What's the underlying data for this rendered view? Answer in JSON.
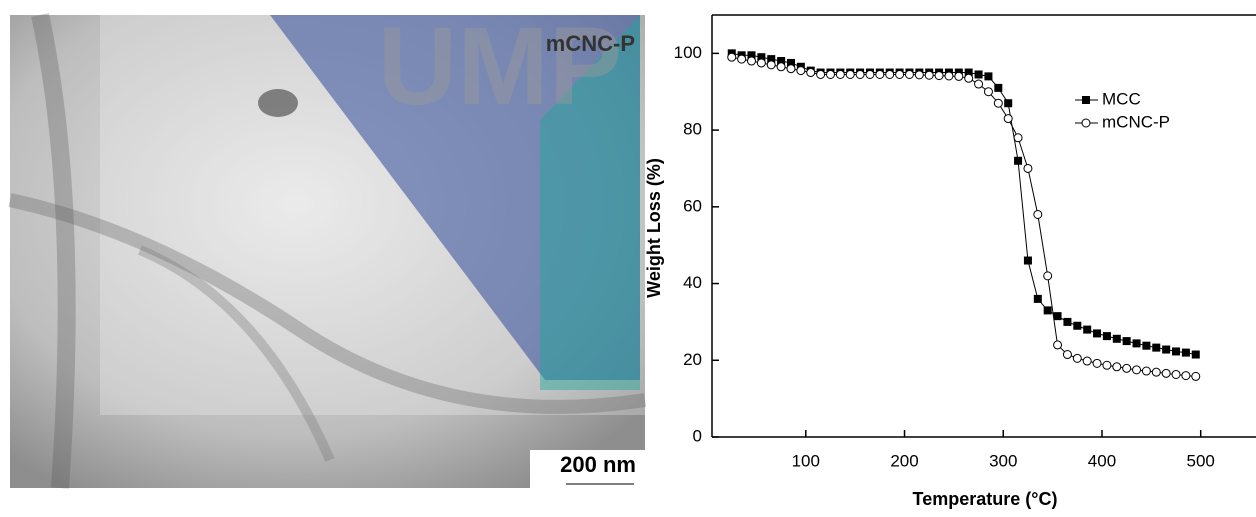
{
  "image": {
    "label": "mCNC-P",
    "scale_bar": "200 nm",
    "watermark": "UMP"
  },
  "chart_data": {
    "type": "line",
    "xlabel": "Temperature (°C)",
    "ylabel": "Weight Loss (%)",
    "x": [
      25,
      35,
      45,
      55,
      65,
      75,
      85,
      95,
      105,
      115,
      125,
      135,
      145,
      155,
      165,
      175,
      185,
      195,
      205,
      215,
      225,
      235,
      245,
      255,
      265,
      275,
      285,
      295,
      305,
      315,
      325,
      335,
      345,
      355,
      365,
      375,
      385,
      395,
      405,
      415,
      425,
      435,
      445,
      455,
      465,
      475,
      485,
      495
    ],
    "series": [
      {
        "name": "MCC",
        "color": "#000000",
        "marker": "square",
        "values": [
          100,
          99.5,
          99.5,
          99,
          98.5,
          98,
          97.5,
          96.5,
          95.5,
          95,
          95,
          95,
          95,
          95,
          95,
          95,
          95,
          95,
          95,
          95,
          95,
          95,
          95,
          95,
          95,
          94.5,
          94,
          91,
          87,
          72,
          46,
          36,
          33,
          31.5,
          30,
          29,
          28,
          27,
          26.3,
          25.6,
          25,
          24.4,
          23.8,
          23.3,
          22.8,
          22.3,
          22,
          21.5
        ]
      },
      {
        "name": "mCNC-P",
        "color": "#000000",
        "marker": "circle",
        "values": [
          99,
          98.5,
          98,
          97.5,
          97,
          96.5,
          96,
          95.5,
          95,
          94.5,
          94.5,
          94.5,
          94.5,
          94.5,
          94.5,
          94.5,
          94.5,
          94.5,
          94.5,
          94.4,
          94.3,
          94.2,
          94.1,
          94,
          93.5,
          92,
          90,
          87,
          83,
          78,
          70,
          58,
          42,
          24,
          21.5,
          20.5,
          19.8,
          19.2,
          18.7,
          18.3,
          17.9,
          17.5,
          17.2,
          16.9,
          16.6,
          16.3,
          16,
          15.8
        ]
      }
    ],
    "xlim": [
      5,
      556
    ],
    "ylim": [
      0,
      110
    ],
    "xticks": [
      100,
      200,
      300,
      400,
      500
    ],
    "yticks": [
      0,
      20,
      40,
      60,
      80,
      100
    ],
    "legend": "upper right"
  }
}
